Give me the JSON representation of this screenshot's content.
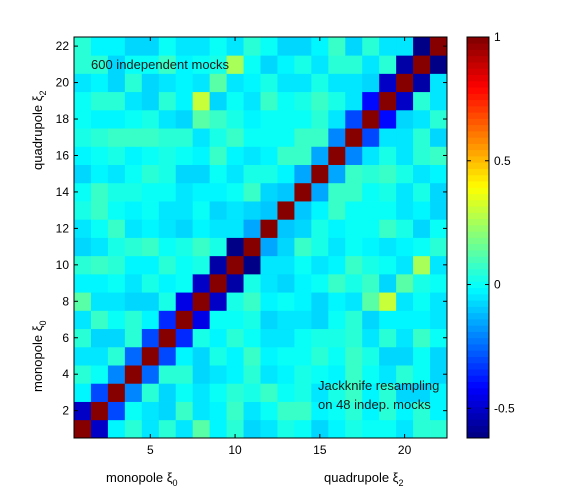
{
  "chart_data": {
    "type": "heatmap",
    "title": "",
    "n": 22,
    "xlim": [
      0.5,
      22.5
    ],
    "ylim": [
      0.5,
      22.5
    ],
    "x_ticks": [
      5,
      10,
      15,
      20
    ],
    "y_ticks": [
      2,
      4,
      6,
      8,
      10,
      12,
      14,
      16,
      18,
      20,
      22
    ],
    "x_block_labels": [
      {
        "prefix": "monopole ξ",
        "sub": "0"
      },
      {
        "prefix": "quadrupole ξ",
        "sub": "2"
      }
    ],
    "y_block_labels": [
      {
        "prefix": "monopole ξ",
        "sub": "0"
      },
      {
        "prefix": "quadrupole ξ",
        "sub": "2"
      }
    ],
    "annotations": {
      "upper": "600 independent mocks",
      "lower_line1": "Jackknife resampling",
      "lower_line2": "on 48 indep. mocks"
    },
    "colorbar": {
      "range": [
        -0.62,
        1
      ],
      "ticks": [
        -0.5,
        0,
        0.5,
        1
      ],
      "tick_labels": [
        "-0.5",
        "0",
        "0.5",
        "1"
      ],
      "colormap": "jet"
    },
    "diagonal_value": 1.0,
    "off_diagonal": [
      {
        "i": 1,
        "j": 2,
        "value": -0.5
      },
      {
        "i": 2,
        "j": 3,
        "value": -0.3
      },
      {
        "i": 3,
        "j": 4,
        "value": -0.2
      },
      {
        "i": 4,
        "j": 5,
        "value": -0.25
      },
      {
        "i": 5,
        "j": 6,
        "value": -0.3
      },
      {
        "i": 6,
        "j": 7,
        "value": -0.35
      },
      {
        "i": 7,
        "j": 8,
        "value": -0.45
      },
      {
        "i": 8,
        "j": 9,
        "value": -0.5
      },
      {
        "i": 9,
        "j": 10,
        "value": -0.55
      },
      {
        "i": 10,
        "j": 11,
        "value": -0.6
      },
      {
        "i": 11,
        "j": 12,
        "value": -0.15
      },
      {
        "i": 12,
        "j": 13,
        "value": -0.1
      },
      {
        "i": 13,
        "j": 14,
        "value": -0.1
      },
      {
        "i": 14,
        "j": 15,
        "value": -0.15
      },
      {
        "i": 15,
        "j": 16,
        "value": -0.15
      },
      {
        "i": 16,
        "j": 17,
        "value": -0.2
      },
      {
        "i": 17,
        "j": 18,
        "value": -0.3
      },
      {
        "i": 18,
        "j": 19,
        "value": -0.4
      },
      {
        "i": 19,
        "j": 20,
        "value": -0.5
      },
      {
        "i": 20,
        "j": 21,
        "value": -0.55
      },
      {
        "i": 21,
        "j": 22,
        "value": -0.62
      },
      {
        "i": 8,
        "j": 19,
        "value": 0.3
      },
      {
        "i": 10,
        "j": 21,
        "value": 0.25
      },
      {
        "i": 1,
        "j": 8,
        "value": 0.12
      },
      {
        "i": 18,
        "j": 8,
        "value": 0.12
      },
      {
        "i": 20,
        "j": 9,
        "value": 0.12
      }
    ]
  }
}
